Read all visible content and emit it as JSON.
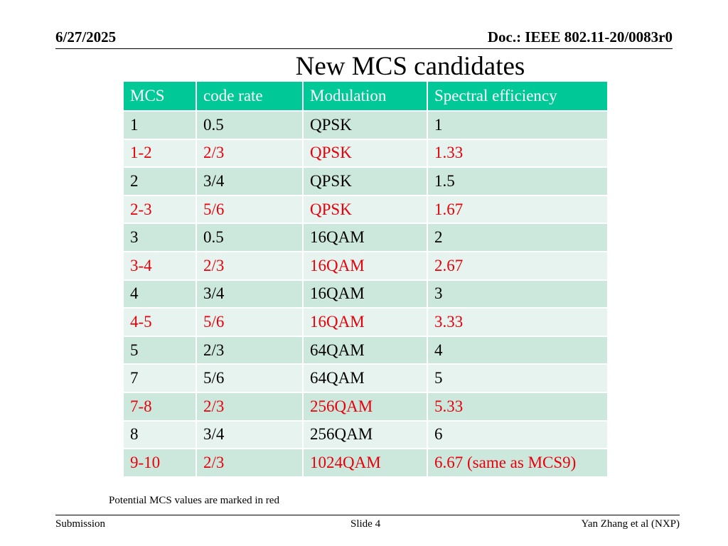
{
  "header": {
    "date": "6/27/2025",
    "doc": "Doc.: IEEE 802.11-20/0083r0"
  },
  "title": "New MCS candidates",
  "table": {
    "columns": [
      "MCS",
      "code rate",
      "Modulation",
      "Spectral efficiency"
    ],
    "rows": [
      {
        "mcs": "1",
        "rate": "0.5",
        "mod": "QPSK",
        "se": "1",
        "highlight": false
      },
      {
        "mcs": "1-2",
        "rate": "2/3",
        "mod": "QPSK",
        "se": "1.33",
        "highlight": true
      },
      {
        "mcs": "2",
        "rate": "3/4",
        "mod": "QPSK",
        "se": "1.5",
        "highlight": false
      },
      {
        "mcs": "2-3",
        "rate": "5/6",
        "mod": "QPSK",
        "se": "1.67",
        "highlight": true
      },
      {
        "mcs": "3",
        "rate": "0.5",
        "mod": "16QAM",
        "se": "2",
        "highlight": false
      },
      {
        "mcs": "3-4",
        "rate": "2/3",
        "mod": "16QAM",
        "se": "2.67",
        "highlight": true
      },
      {
        "mcs": "4",
        "rate": "3/4",
        "mod": "16QAM",
        "se": "3",
        "highlight": false
      },
      {
        "mcs": "4-5",
        "rate": "5/6",
        "mod": "16QAM",
        "se": "3.33",
        "highlight": true
      },
      {
        "mcs": "5",
        "rate": "2/3",
        "mod": "64QAM",
        "se": "4",
        "highlight": false
      },
      {
        "mcs": "7",
        "rate": "5/6",
        "mod": "64QAM",
        "se": "5",
        "highlight": false
      },
      {
        "mcs": "7-8",
        "rate": "2/3",
        "mod": "256QAM",
        "se": "5.33",
        "highlight": true
      },
      {
        "mcs": "8",
        "rate": "3/4",
        "mod": "256QAM",
        "se": "6",
        "highlight": false
      },
      {
        "mcs": "9-10",
        "rate": "2/3",
        "mod": "1024QAM",
        "se": "6.67 (same as MCS9)",
        "highlight": true
      }
    ]
  },
  "note": "Potential MCS values are marked in red",
  "footer": {
    "left": "Submission",
    "center": "Slide 4",
    "right": "Yan Zhang et al (NXP)"
  },
  "colors": {
    "header_bg": "#00c896",
    "row_dark": "#cce8dd",
    "row_light": "#e6f3ee",
    "highlight_text": "#e8000b"
  }
}
